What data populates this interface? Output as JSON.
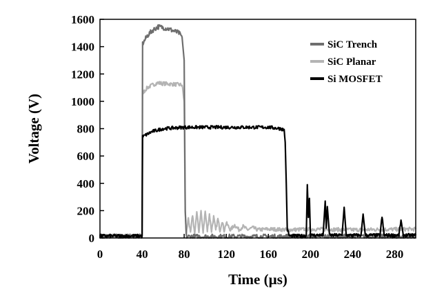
{
  "chart_data": {
    "type": "line",
    "xlabel": "Time (µs)",
    "ylabel": "Voltage (V)",
    "xlim": [
      0,
      300
    ],
    "ylim": [
      0,
      1600
    ],
    "xticks": [
      0,
      40,
      80,
      120,
      160,
      200,
      240,
      280
    ],
    "yticks": [
      0,
      200,
      400,
      600,
      800,
      1000,
      1200,
      1400,
      1600
    ],
    "grid": false,
    "legend_position": "top-right",
    "series": [
      {
        "name": "SiC Trench",
        "color": "#6e6e6e",
        "points": [
          [
            0,
            10
          ],
          [
            40,
            10
          ],
          [
            40.5,
            1420
          ],
          [
            45,
            1480
          ],
          [
            50,
            1520
          ],
          [
            55,
            1545
          ],
          [
            60,
            1540
          ],
          [
            65,
            1530
          ],
          [
            70,
            1515
          ],
          [
            75,
            1500
          ],
          [
            78,
            1470
          ],
          [
            80,
            1300
          ],
          [
            81,
            200
          ],
          [
            82,
            10
          ],
          [
            300,
            10
          ]
        ]
      },
      {
        "name": "SiC Planar",
        "color": "#b4b4b4",
        "points": [
          [
            0,
            15
          ],
          [
            40,
            15
          ],
          [
            40.5,
            1060
          ],
          [
            45,
            1100
          ],
          [
            50,
            1120
          ],
          [
            55,
            1135
          ],
          [
            60,
            1130
          ],
          [
            70,
            1125
          ],
          [
            78,
            1120
          ],
          [
            80,
            1000
          ],
          [
            81,
            200
          ],
          [
            82,
            20
          ],
          [
            84,
            150
          ],
          [
            86,
            30
          ],
          [
            88,
            170
          ],
          [
            90,
            30
          ],
          [
            92,
            190
          ],
          [
            94,
            40
          ],
          [
            96,
            200
          ],
          [
            98,
            45
          ],
          [
            100,
            195
          ],
          [
            102,
            50
          ],
          [
            104,
            175
          ],
          [
            106,
            50
          ],
          [
            108,
            155
          ],
          [
            110,
            55
          ],
          [
            112,
            140
          ],
          [
            114,
            55
          ],
          [
            116,
            125
          ],
          [
            118,
            55
          ],
          [
            120,
            110
          ],
          [
            124,
            60
          ],
          [
            128,
            95
          ],
          [
            132,
            60
          ],
          [
            136,
            85
          ],
          [
            140,
            60
          ],
          [
            145,
            75
          ],
          [
            150,
            60
          ],
          [
            160,
            65
          ],
          [
            180,
            60
          ],
          [
            200,
            65
          ],
          [
            240,
            60
          ],
          [
            300,
            65
          ]
        ]
      },
      {
        "name": "Si MOSFET",
        "color": "#000000",
        "points": [
          [
            0,
            15
          ],
          [
            40,
            15
          ],
          [
            40.5,
            740
          ],
          [
            45,
            760
          ],
          [
            50,
            780
          ],
          [
            60,
            800
          ],
          [
            80,
            810
          ],
          [
            100,
            810
          ],
          [
            120,
            810
          ],
          [
            140,
            810
          ],
          [
            160,
            810
          ],
          [
            172,
            800
          ],
          [
            175,
            790
          ],
          [
            176,
            700
          ],
          [
            177,
            400
          ],
          [
            178,
            60
          ],
          [
            180,
            15
          ],
          [
            196,
            15
          ],
          [
            197,
            390
          ],
          [
            198,
            150
          ],
          [
            199,
            290
          ],
          [
            200,
            20
          ],
          [
            212,
            20
          ],
          [
            214,
            270
          ],
          [
            215,
            80
          ],
          [
            216,
            230
          ],
          [
            218,
            20
          ],
          [
            230,
            20
          ],
          [
            232,
            225
          ],
          [
            234,
            20
          ],
          [
            248,
            20
          ],
          [
            250,
            175
          ],
          [
            252,
            20
          ],
          [
            266,
            20
          ],
          [
            268,
            155
          ],
          [
            270,
            20
          ],
          [
            284,
            20
          ],
          [
            286,
            130
          ],
          [
            288,
            20
          ],
          [
            300,
            20
          ]
        ]
      }
    ]
  }
}
